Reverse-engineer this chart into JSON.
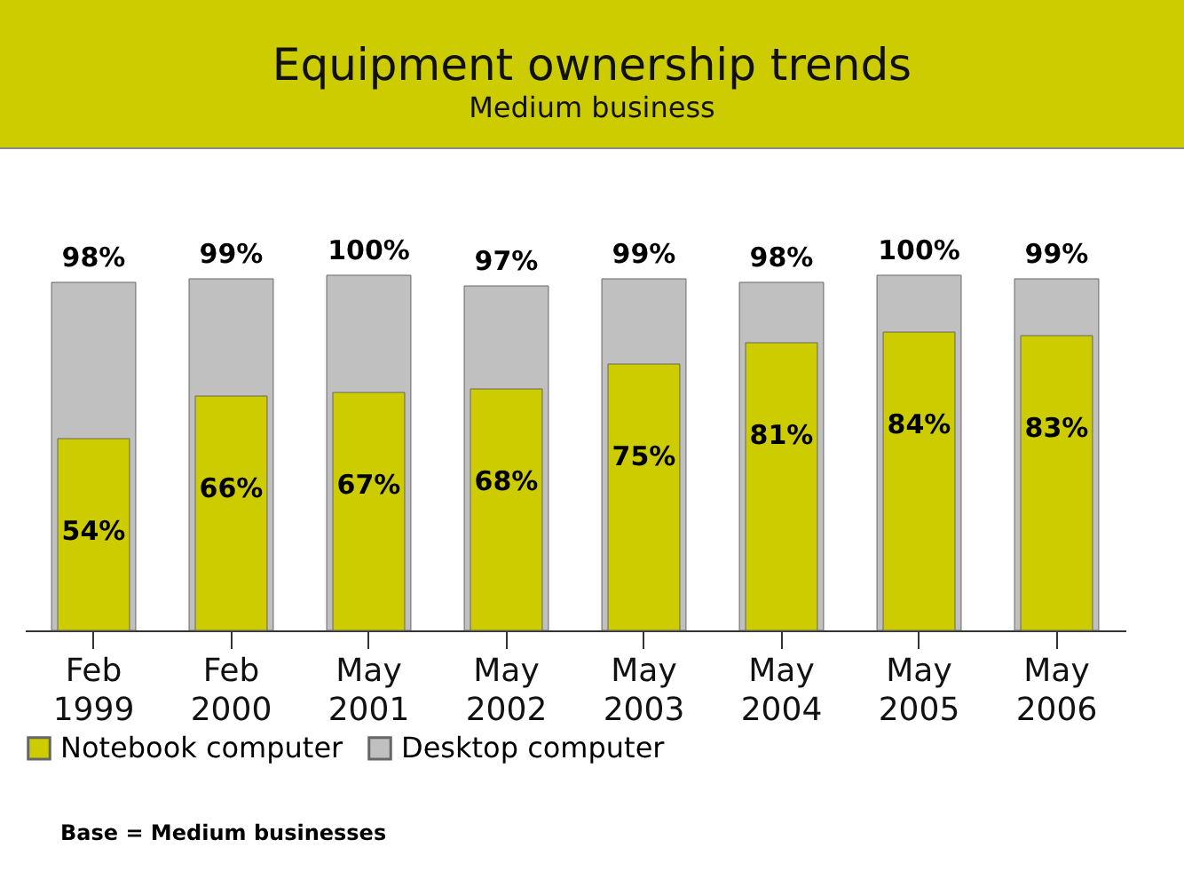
{
  "chart_data": {
    "type": "bar",
    "title": "Equipment ownership trends",
    "subtitle": "Medium business",
    "categories": [
      "Feb 1999",
      "Feb 2000",
      "May 2001",
      "May 2002",
      "May 2003",
      "May 2004",
      "May 2005",
      "May 2006"
    ],
    "series": [
      {
        "name": "Notebook computer",
        "color": "#cccc00",
        "values": [
          54,
          66,
          67,
          68,
          75,
          81,
          84,
          83
        ],
        "value_labels": [
          "54%",
          "66%",
          "67%",
          "68%",
          "75%",
          "81%",
          "84%",
          "83%"
        ]
      },
      {
        "name": "Desktop computer",
        "color": "#c0c0c0",
        "values": [
          98,
          99,
          100,
          97,
          99,
          98,
          100,
          99
        ],
        "value_labels": [
          "98%",
          "99%",
          "100%",
          "97%",
          "99%",
          "98%",
          "100%",
          "99%"
        ]
      }
    ],
    "legend": "bottom",
    "grid": false,
    "annotations": [
      "Base = Medium businesses"
    ]
  }
}
